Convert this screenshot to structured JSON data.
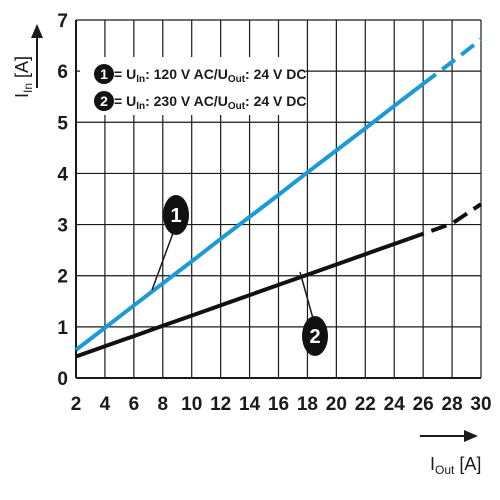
{
  "chart_data": {
    "type": "line",
    "xlabel": {
      "main": "I",
      "sub": "Out",
      "unit": " [A]"
    },
    "ylabel": {
      "main": "I",
      "sub": "In",
      "unit": " [A]"
    },
    "xlim": [
      2,
      30
    ],
    "ylim": [
      0,
      7
    ],
    "x_ticks": [
      "2",
      "4",
      "6",
      "8",
      "10",
      "12",
      "14",
      "16",
      "18",
      "20",
      "22",
      "24",
      "26",
      "28",
      "30"
    ],
    "y_ticks": [
      "0",
      "1",
      "2",
      "3",
      "4",
      "5",
      "6",
      "7"
    ],
    "grid": true,
    "legend_position": "top-left",
    "series": [
      {
        "marker": "1",
        "legend": {
          "a": " = U",
          "a_sub": "In",
          "b": ": 120 V AC/U",
          "b_sub": "Out",
          "c": ": 24 V DC"
        },
        "color": "#1a9ad6",
        "points": [
          [
            2,
            0.55
          ],
          [
            4,
            0.98
          ],
          [
            6,
            1.42
          ],
          [
            8,
            1.85
          ],
          [
            10,
            2.28
          ],
          [
            12,
            2.72
          ],
          [
            14,
            3.15
          ],
          [
            16,
            3.58
          ],
          [
            18,
            4.02
          ],
          [
            20,
            4.45
          ],
          [
            22,
            4.88
          ],
          [
            24,
            5.32
          ],
          [
            26,
            5.75
          ],
          [
            28,
            6.18
          ],
          [
            30,
            6.62
          ]
        ],
        "dashed_from_x": 26
      },
      {
        "marker": "2",
        "legend": {
          "a": " = U",
          "a_sub": "In",
          "b": ": 230 V AC/U",
          "b_sub": "Out",
          "c": ": 24 V DC"
        },
        "color": "#111111",
        "points": [
          [
            2,
            0.42
          ],
          [
            4,
            0.62
          ],
          [
            6,
            0.82
          ],
          [
            8,
            1.02
          ],
          [
            10,
            1.22
          ],
          [
            12,
            1.42
          ],
          [
            14,
            1.62
          ],
          [
            16,
            1.82
          ],
          [
            18,
            2.02
          ],
          [
            20,
            2.22
          ],
          [
            22,
            2.42
          ],
          [
            24,
            2.62
          ],
          [
            26,
            2.82
          ],
          [
            28,
            3.02
          ],
          [
            30,
            3.4
          ]
        ],
        "dashed_from_x": 25
      }
    ]
  }
}
